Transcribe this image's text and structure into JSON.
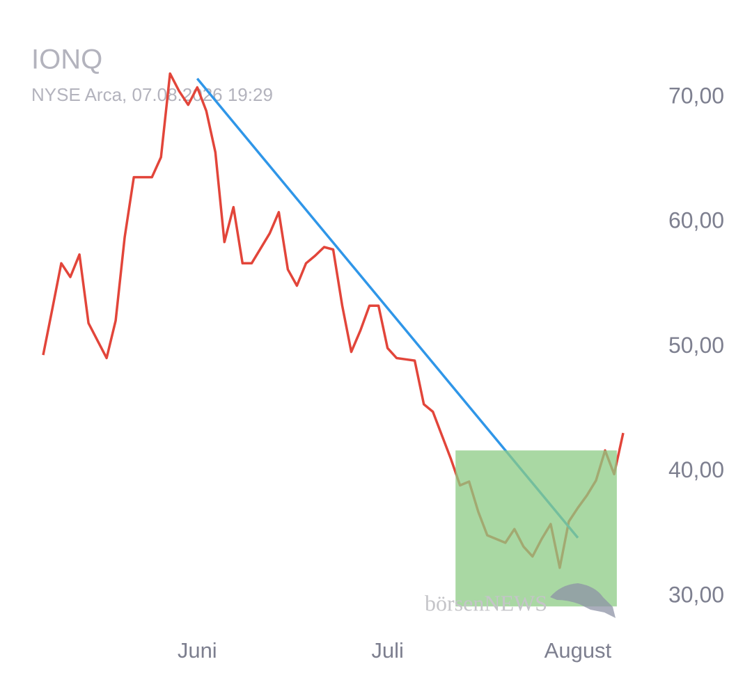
{
  "chart_data": {
    "type": "line",
    "title": "IONQ",
    "subtitle": "NYSE Arca, 07.08.2026 19:29",
    "watermark": "börsenNEWS",
    "color": "#e2453a",
    "categories": [
      null,
      null,
      null,
      null,
      null,
      null,
      null,
      null,
      null,
      null,
      null,
      null,
      null,
      null,
      null,
      null,
      null,
      "Juni",
      null,
      null,
      null,
      null,
      null,
      null,
      null,
      null,
      null,
      null,
      null,
      null,
      null,
      null,
      null,
      null,
      null,
      null,
      null,
      null,
      "Juli",
      null,
      null,
      null,
      null,
      null,
      null,
      null,
      null,
      null,
      null,
      null,
      null,
      null,
      null,
      null,
      null,
      null,
      null,
      null,
      null,
      "August",
      null,
      null,
      null,
      null,
      null
    ],
    "values": [
      49.35,
      53.0,
      56.7,
      55.6,
      57.4,
      51.9,
      50.5,
      49.1,
      52.1,
      58.8,
      63.6,
      63.6,
      63.6,
      65.2,
      71.9,
      70.5,
      69.4,
      70.8,
      68.9,
      65.6,
      58.4,
      61.2,
      56.7,
      56.7,
      57.9,
      59.1,
      60.8,
      56.2,
      54.9,
      56.7,
      57.3,
      58.0,
      57.8,
      53.3,
      49.6,
      51.3,
      53.3,
      53.3,
      49.9,
      49.1,
      49.0,
      48.9,
      45.4,
      44.8,
      42.9,
      41.0,
      38.9,
      39.2,
      36.8,
      34.9,
      34.6,
      34.3,
      35.4,
      34.0,
      33.2,
      34.6,
      35.8,
      32.3,
      36.0,
      37.1,
      38.1,
      39.3,
      41.7,
      39.8,
      43.1
    ],
    "ylim": [
      28,
      73
    ],
    "yticks": [
      {
        "value": 30,
        "label": "30,00"
      },
      {
        "value": 40,
        "label": "40,00"
      },
      {
        "value": 50,
        "label": "50,00"
      },
      {
        "value": 60,
        "label": "60,00"
      },
      {
        "value": 70,
        "label": "70,00"
      }
    ],
    "trendline": {
      "start": [
        17,
        71.5
      ],
      "end": [
        59,
        34.7
      ],
      "color": "#2f96e8"
    },
    "highlight": {
      "x": [
        45.5,
        63.3
      ],
      "y": [
        29.2,
        41.7
      ],
      "color": "#8ccb84"
    }
  }
}
